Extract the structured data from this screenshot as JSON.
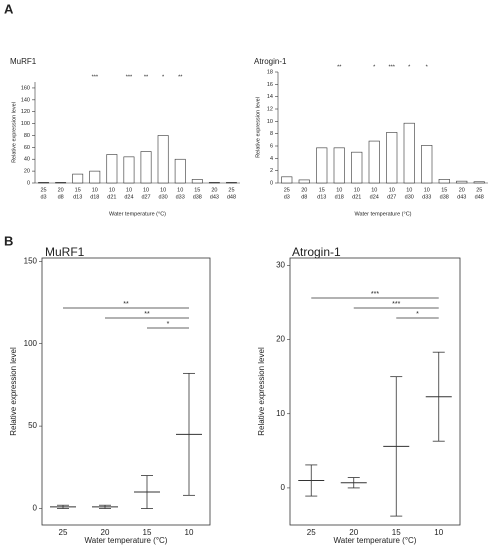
{
  "panel_labels": [
    "A",
    "B"
  ],
  "chart_data": [
    {
      "type": "bar",
      "title": "MuRF1",
      "ylabel": "Relative expression level",
      "xlabel": "Water temperature (°C)",
      "categories": [
        [
          "25",
          "d3"
        ],
        [
          "20",
          "d8"
        ],
        [
          "15",
          "d13"
        ],
        [
          "10",
          "d18"
        ],
        [
          "10",
          "d21"
        ],
        [
          "10",
          "d24"
        ],
        [
          "10",
          "d27"
        ],
        [
          "10",
          "d30"
        ],
        [
          "10",
          "d33"
        ],
        [
          "15",
          "d38"
        ],
        [
          "20",
          "d43"
        ],
        [
          "25",
          "d48"
        ]
      ],
      "values": [
        1,
        1,
        15,
        20,
        48,
        44,
        53,
        80,
        40,
        6,
        1,
        1
      ],
      "significance": [
        null,
        null,
        null,
        "***",
        null,
        "***",
        "**",
        "*",
        "**",
        null,
        null,
        null
      ],
      "ylim": [
        0,
        170
      ],
      "yticks": [
        0,
        20,
        40,
        60,
        80,
        100,
        120,
        140,
        160
      ],
      "color": "#ffffff"
    },
    {
      "type": "bar",
      "title": "Atrogin-1",
      "ylabel": "Relative expression level",
      "xlabel": "Water temperature (°C)",
      "categories": [
        [
          "25",
          "d3"
        ],
        [
          "20",
          "d8"
        ],
        [
          "15",
          "d13"
        ],
        [
          "10",
          "d18"
        ],
        [
          "10",
          "d21"
        ],
        [
          "10",
          "d24"
        ],
        [
          "10",
          "d27"
        ],
        [
          "10",
          "d30"
        ],
        [
          "10",
          "d33"
        ],
        [
          "15",
          "d38"
        ],
        [
          "20",
          "d43"
        ],
        [
          "25",
          "d48"
        ]
      ],
      "values": [
        1,
        0.5,
        5.7,
        5.7,
        5,
        6.8,
        8.2,
        9.7,
        6.1,
        0.6,
        0.3,
        0.2
      ],
      "significance": [
        null,
        null,
        null,
        "**",
        null,
        "*",
        "***",
        "*",
        "*",
        null,
        null,
        null
      ],
      "ylim": [
        0,
        18
      ],
      "yticks": [
        0,
        2,
        4,
        6,
        8,
        10,
        12,
        14,
        16,
        18
      ],
      "color": "#ffffff"
    },
    {
      "type": "meansd",
      "title": "MuRF1",
      "ylabel": "Relative expression level",
      "xlabel": "Water temperature (°C)",
      "categories": [
        "25",
        "20",
        "15",
        "10"
      ],
      "values": [
        1,
        1,
        10,
        45
      ],
      "errors": [
        1,
        1,
        10,
        37
      ],
      "comparisons": [
        {
          "from": "25",
          "to": "10",
          "label": "**"
        },
        {
          "from": "20",
          "to": "10",
          "label": "**"
        },
        {
          "from": "15",
          "to": "10",
          "label": "*"
        }
      ],
      "ylim": [
        -10,
        152
      ],
      "yticks": [
        0,
        50,
        100,
        150
      ]
    },
    {
      "type": "meansd",
      "title": "Atrogin-1",
      "ylabel": "Relative expression level",
      "xlabel": "Water temperature (°C)",
      "categories": [
        "25",
        "20",
        "15",
        "10"
      ],
      "values": [
        1,
        0.7,
        5.6,
        12.3
      ],
      "errors": [
        2.1,
        0.7,
        9.4,
        6
      ],
      "comparisons": [
        {
          "from": "25",
          "to": "10",
          "label": "***"
        },
        {
          "from": "20",
          "to": "10",
          "label": "***"
        },
        {
          "from": "15",
          "to": "10",
          "label": "*"
        }
      ],
      "ylim": [
        -5,
        31
      ],
      "yticks": [
        0,
        10,
        20,
        30
      ]
    }
  ]
}
